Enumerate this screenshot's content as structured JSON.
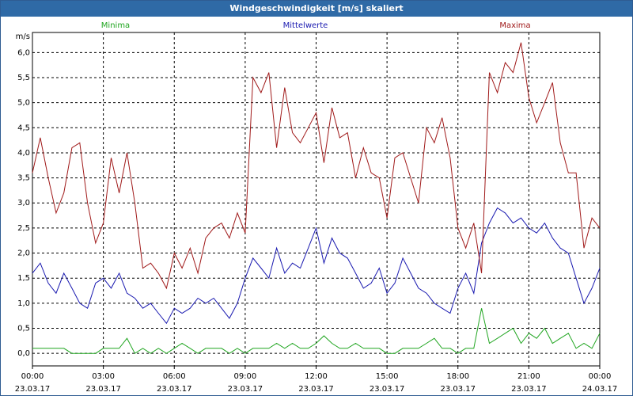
{
  "window": {
    "title": "Windgeschwindigkeit [m/s] skaliert"
  },
  "chart_data": {
    "type": "line",
    "title": "Windgeschwindigkeit [m/s] skaliert",
    "ylabel": "m/s",
    "ylim": [
      -0.25,
      6.4
    ],
    "yticks": [
      "0,0",
      "0,5",
      "1,0",
      "1,5",
      "2,0",
      "2,5",
      "3,0",
      "3,5",
      "4,0",
      "4,5",
      "5,0",
      "5,5",
      "6,0"
    ],
    "xlim": [
      0,
      24
    ],
    "xticks": [
      {
        "time": "00:00",
        "date": "23.03.17"
      },
      {
        "time": "03:00",
        "date": "23.03.17"
      },
      {
        "time": "06:00",
        "date": "23.03.17"
      },
      {
        "time": "09:00",
        "date": "23.03.17"
      },
      {
        "time": "12:00",
        "date": "23.03.17"
      },
      {
        "time": "15:00",
        "date": "23.03.17"
      },
      {
        "time": "18:00",
        "date": "23.03.17"
      },
      {
        "time": "21:00",
        "date": "23.03.17"
      },
      {
        "time": "00:00",
        "date": "24.03.17"
      }
    ],
    "grid": true,
    "legend_position": "top",
    "series": [
      {
        "name": "Minima",
        "color": "#1fa51f",
        "x": [
          0,
          0.33,
          0.67,
          1,
          1.33,
          1.67,
          2,
          2.33,
          2.67,
          3,
          3.33,
          3.67,
          4,
          4.33,
          4.67,
          5,
          5.33,
          5.67,
          6,
          6.33,
          6.67,
          7,
          7.33,
          7.67,
          8,
          8.33,
          8.67,
          9,
          9.33,
          9.67,
          10,
          10.33,
          10.67,
          11,
          11.33,
          11.67,
          12,
          12.33,
          12.67,
          13,
          13.33,
          13.67,
          14,
          14.33,
          14.67,
          15,
          15.33,
          15.67,
          16,
          16.33,
          16.67,
          17,
          17.33,
          17.67,
          18,
          18.33,
          18.67,
          19,
          19.33,
          19.67,
          20,
          20.33,
          20.67,
          21,
          21.33,
          21.67,
          22,
          22.33,
          22.67,
          23,
          23.33,
          23.67,
          24
        ],
        "values": [
          0.1,
          0.1,
          0.1,
          0.1,
          0.1,
          0.0,
          0.0,
          0.0,
          0.0,
          0.1,
          0.1,
          0.1,
          0.3,
          0.0,
          0.1,
          0.0,
          0.1,
          0.0,
          0.1,
          0.2,
          0.1,
          0.0,
          0.1,
          0.1,
          0.1,
          0.0,
          0.1,
          0.0,
          0.1,
          0.1,
          0.1,
          0.2,
          0.1,
          0.2,
          0.1,
          0.1,
          0.2,
          0.35,
          0.2,
          0.1,
          0.1,
          0.2,
          0.1,
          0.1,
          0.1,
          0.0,
          0.0,
          0.1,
          0.1,
          0.1,
          0.2,
          0.3,
          0.1,
          0.1,
          0.0,
          0.1,
          0.1,
          0.9,
          0.2,
          0.3,
          0.4,
          0.5,
          0.2,
          0.4,
          0.3,
          0.5,
          0.2,
          0.3,
          0.4,
          0.1,
          0.2,
          0.1,
          0.4
        ]
      },
      {
        "name": "Mittelwerte",
        "color": "#1a1ab0",
        "x": [
          0,
          0.33,
          0.67,
          1,
          1.33,
          1.67,
          2,
          2.33,
          2.67,
          3,
          3.33,
          3.67,
          4,
          4.33,
          4.67,
          5,
          5.33,
          5.67,
          6,
          6.33,
          6.67,
          7,
          7.33,
          7.67,
          8,
          8.33,
          8.67,
          9,
          9.33,
          9.67,
          10,
          10.33,
          10.67,
          11,
          11.33,
          11.67,
          12,
          12.33,
          12.67,
          13,
          13.33,
          13.67,
          14,
          14.33,
          14.67,
          15,
          15.33,
          15.67,
          16,
          16.33,
          16.67,
          17,
          17.33,
          17.67,
          18,
          18.33,
          18.67,
          19,
          19.33,
          19.67,
          20,
          20.33,
          20.67,
          21,
          21.33,
          21.67,
          22,
          22.33,
          22.67,
          23,
          23.33,
          23.67,
          24
        ],
        "values": [
          1.6,
          1.8,
          1.4,
          1.2,
          1.6,
          1.3,
          1.0,
          0.9,
          1.4,
          1.5,
          1.3,
          1.6,
          1.2,
          1.1,
          0.9,
          1.0,
          0.8,
          0.6,
          0.9,
          0.8,
          0.9,
          1.1,
          1.0,
          1.1,
          0.9,
          0.7,
          1.0,
          1.5,
          1.9,
          1.7,
          1.5,
          2.1,
          1.6,
          1.8,
          1.7,
          2.1,
          2.5,
          1.8,
          2.3,
          2.0,
          1.9,
          1.6,
          1.3,
          1.4,
          1.7,
          1.2,
          1.4,
          1.9,
          1.6,
          1.3,
          1.2,
          1.0,
          0.9,
          0.8,
          1.3,
          1.6,
          1.2,
          2.2,
          2.6,
          2.9,
          2.8,
          2.6,
          2.7,
          2.5,
          2.4,
          2.6,
          2.3,
          2.1,
          2.0,
          1.5,
          1.0,
          1.3,
          1.7
        ]
      },
      {
        "name": "Maxima",
        "color": "#a01a1a",
        "x": [
          0,
          0.33,
          0.67,
          1,
          1.33,
          1.67,
          2,
          2.33,
          2.67,
          3,
          3.33,
          3.67,
          4,
          4.33,
          4.67,
          5,
          5.33,
          5.67,
          6,
          6.33,
          6.67,
          7,
          7.33,
          7.67,
          8,
          8.33,
          8.67,
          9,
          9.33,
          9.67,
          10,
          10.33,
          10.67,
          11,
          11.33,
          11.67,
          12,
          12.33,
          12.67,
          13,
          13.33,
          13.67,
          14,
          14.33,
          14.67,
          15,
          15.33,
          15.67,
          16,
          16.33,
          16.67,
          17,
          17.33,
          17.67,
          18,
          18.33,
          18.67,
          19,
          19.33,
          19.67,
          20,
          20.33,
          20.67,
          21,
          21.33,
          21.67,
          22,
          22.33,
          22.67,
          23,
          23.33,
          23.67,
          24
        ],
        "values": [
          3.6,
          4.3,
          3.5,
          2.8,
          3.2,
          4.1,
          4.2,
          3.0,
          2.2,
          2.6,
          3.9,
          3.2,
          4.0,
          3.0,
          1.7,
          1.8,
          1.6,
          1.3,
          2.0,
          1.7,
          2.1,
          1.6,
          2.3,
          2.5,
          2.6,
          2.3,
          2.8,
          2.4,
          5.5,
          5.2,
          5.6,
          4.1,
          5.3,
          4.4,
          4.2,
          4.5,
          4.8,
          3.8,
          4.9,
          4.3,
          4.4,
          3.5,
          4.1,
          3.6,
          3.5,
          2.7,
          3.9,
          4.0,
          3.5,
          3.0,
          4.5,
          4.2,
          4.7,
          3.9,
          2.5,
          2.1,
          2.6,
          1.6,
          5.6,
          5.2,
          5.8,
          5.6,
          6.2,
          5.1,
          4.6,
          5.0,
          5.4,
          4.2,
          3.6,
          3.6,
          2.1,
          2.7,
          2.5
        ]
      }
    ]
  }
}
